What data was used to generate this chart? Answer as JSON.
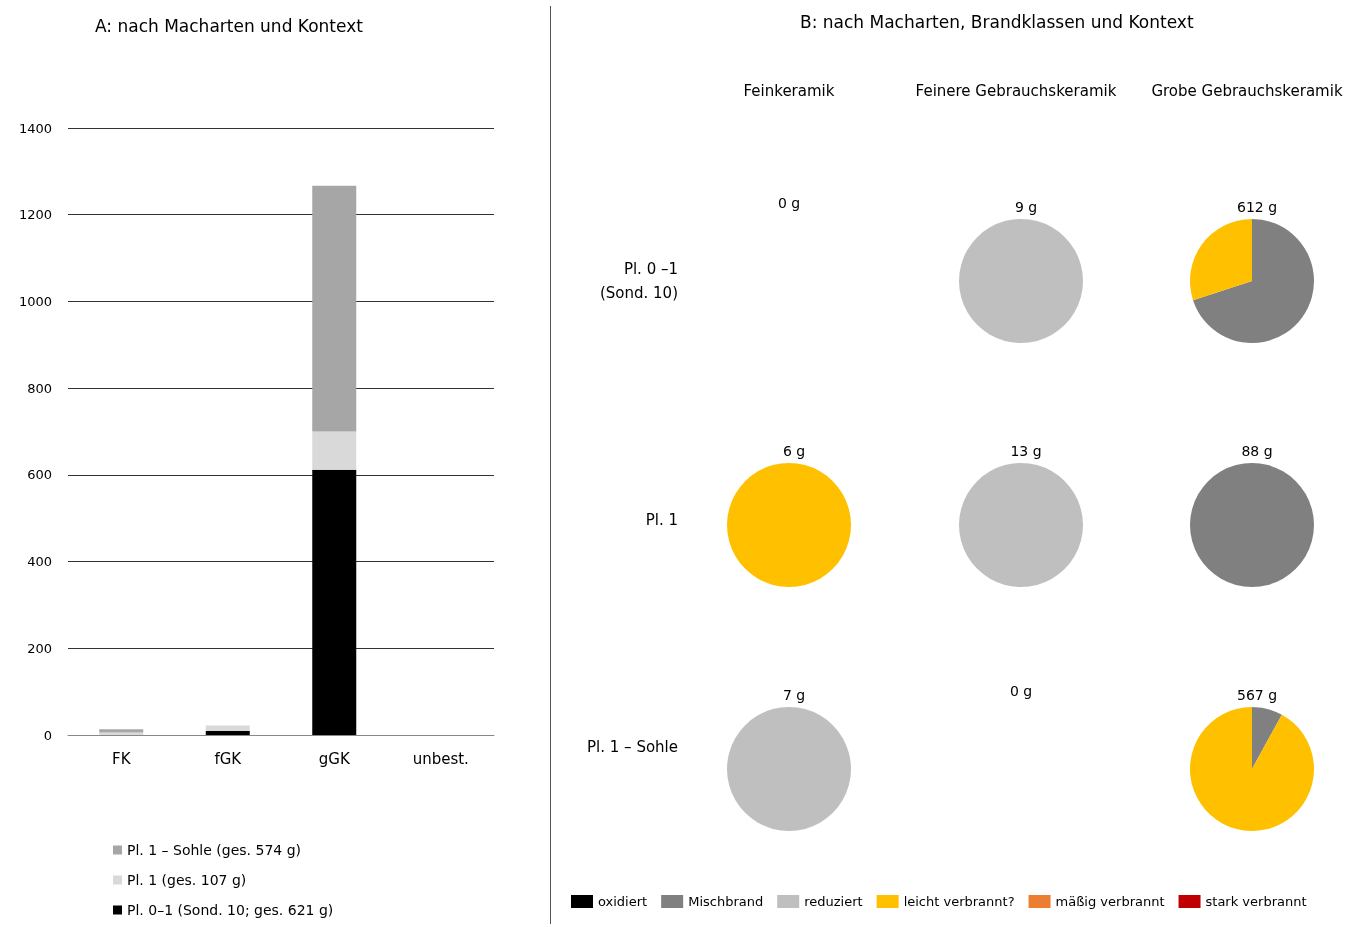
{
  "chart_data": [
    {
      "type": "bar",
      "title": "A: nach Macharten und Kontext",
      "categories": [
        "FK",
        "fGK",
        "gGK",
        "unbest."
      ],
      "stacked": true,
      "series": [
        {
          "name": "Pl. 0–1 (Sond. 10; ges. 621 g)",
          "color": "#000000",
          "values": [
            0,
            9,
            612,
            0
          ]
        },
        {
          "name": "Pl. 1 (ges. 107 g)",
          "color": "#d9d9d9",
          "values": [
            6,
            13,
            88,
            0
          ]
        },
        {
          "name": "Pl. 1 – Sohle (ges. 574 g)",
          "color": "#a6a6a6",
          "values": [
            7,
            0,
            567,
            0
          ]
        }
      ],
      "ylim": [
        0,
        1400
      ],
      "yticks": [
        0,
        200,
        400,
        600,
        800,
        1000,
        1200,
        1400
      ],
      "grid": "y",
      "legend": "bottom left"
    },
    {
      "type": "other",
      "title": "B: nach Macharten, Brandklassen und Kontext",
      "annotations": [
        "Feinkeramik",
        "Feinere Gebrauchskeramik",
        "Grobe Gebrauchskeramik",
        "Pl. 0 –1 (Sond. 10)",
        "Pl. 1",
        "Pl. 1 – Sohle",
        "0 g",
        "0 g"
      ]
    },
    {
      "type": "pie",
      "categories": [
        "oxidiert",
        "Mischbrand",
        "reduziert",
        "leicht verbrannt?",
        "mäßig verbrannt",
        "stark verbrannt"
      ],
      "colors": [
        "#000000",
        "#808080",
        "#bfbfbf",
        "#ffc000",
        "#ed7d31",
        "#c00000"
      ],
      "legend": "bottom",
      "series": [
        {
          "name": "9 g",
          "values": [
            0,
            0,
            100,
            0,
            0,
            0
          ]
        },
        {
          "name": "612 g",
          "values": [
            0,
            70,
            0,
            30,
            0,
            0
          ]
        },
        {
          "name": "6 g",
          "values": [
            0,
            0,
            0,
            100,
            0,
            0
          ]
        },
        {
          "name": "13 g",
          "values": [
            0,
            0,
            100,
            0,
            0,
            0
          ]
        },
        {
          "name": "88 g",
          "values": [
            0,
            100,
            0,
            0,
            0,
            0
          ]
        },
        {
          "name": "7 g",
          "values": [
            0,
            0,
            100,
            0,
            0,
            0
          ]
        },
        {
          "name": "567 g",
          "values": [
            0,
            8,
            0,
            92,
            0,
            0
          ]
        }
      ]
    }
  ]
}
